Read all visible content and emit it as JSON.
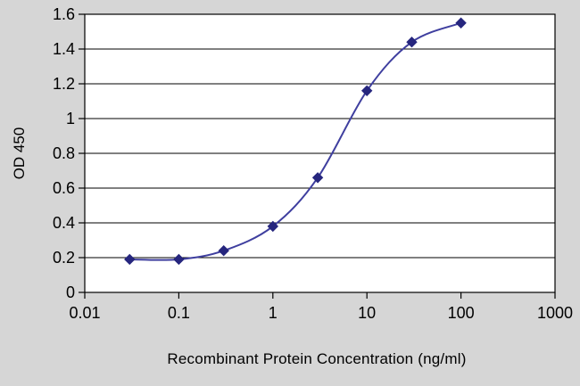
{
  "chart_data": {
    "type": "line",
    "title": "",
    "xlabel": "Recombinant Protein Concentration (ng/ml)",
    "ylabel": "OD 450",
    "x_scale": "log",
    "xlim": [
      0.01,
      1000
    ],
    "ylim": [
      0,
      1.6
    ],
    "x": [
      0.03,
      0.1,
      0.3,
      1,
      3,
      10,
      30,
      100
    ],
    "y": [
      0.19,
      0.19,
      0.24,
      0.38,
      0.66,
      1.16,
      1.44,
      1.55
    ],
    "x_ticks": [
      0.01,
      0.1,
      1,
      10,
      100,
      1000
    ],
    "x_tick_labels": [
      "0.01",
      "0.1",
      "1",
      "10",
      "100",
      "1000"
    ],
    "y_ticks": [
      0,
      0.2,
      0.4,
      0.6,
      0.8,
      1,
      1.2,
      1.4,
      1.6
    ],
    "y_tick_labels": [
      "0",
      "0.2",
      "0.4",
      "0.6",
      "0.8",
      "1",
      "1.2",
      "1.4",
      "1.6"
    ],
    "grid": "horizontal",
    "marker": "diamond",
    "line_color": "#3f3f9f",
    "marker_color": "#26267e",
    "grid_color": "#000000",
    "axis_color": "#000000",
    "background_color": "#d6d6d6",
    "plot_background": "#ffffff"
  }
}
